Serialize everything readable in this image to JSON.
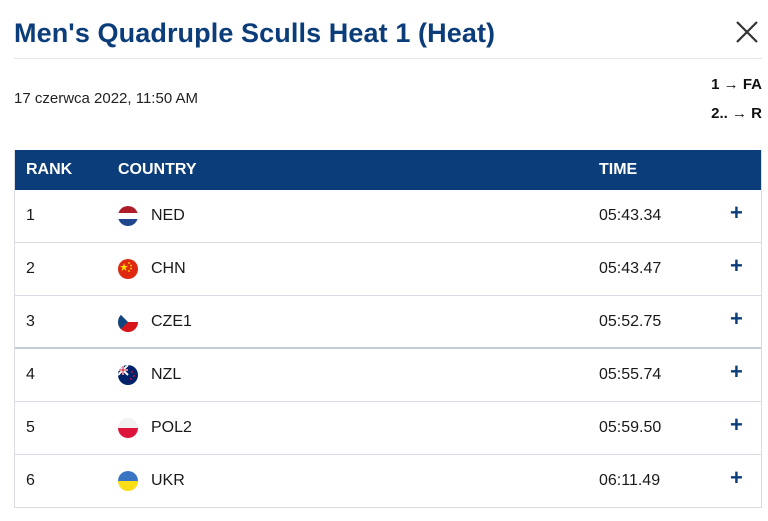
{
  "header": {
    "title": "Men's Quadruple Sculls Heat 1 (Heat)",
    "close_icon": "close-icon"
  },
  "meta": {
    "datetime": "17 czerwca 2022, 11:50 AM"
  },
  "progression": [
    "1 → FA",
    "2.. → R"
  ],
  "table": {
    "columns": {
      "rank": "RANK",
      "country": "COUNTRY",
      "time": "TIME"
    },
    "rows": [
      {
        "rank": "1",
        "country": "NED",
        "time": "05:43.34",
        "flag": "netherlands-flag-icon",
        "expand": "+"
      },
      {
        "rank": "2",
        "country": "CHN",
        "time": "05:43.47",
        "flag": "china-flag-icon",
        "expand": "+"
      },
      {
        "rank": "3",
        "country": "CZE1",
        "time": "05:52.75",
        "flag": "czech-flag-icon",
        "expand": "+"
      },
      {
        "rank": "4",
        "country": "NZL",
        "time": "05:55.74",
        "flag": "new-zealand-flag-icon",
        "expand": "+"
      },
      {
        "rank": "5",
        "country": "POL2",
        "time": "05:59.50",
        "flag": "poland-flag-icon",
        "expand": "+"
      },
      {
        "rank": "6",
        "country": "UKR",
        "time": "06:11.49",
        "flag": "ukraine-flag-icon",
        "expand": "+"
      }
    ]
  },
  "colors": {
    "brand": "#0b3d7a",
    "header_text": "#ffffff",
    "row_border": "#d9dde3"
  }
}
